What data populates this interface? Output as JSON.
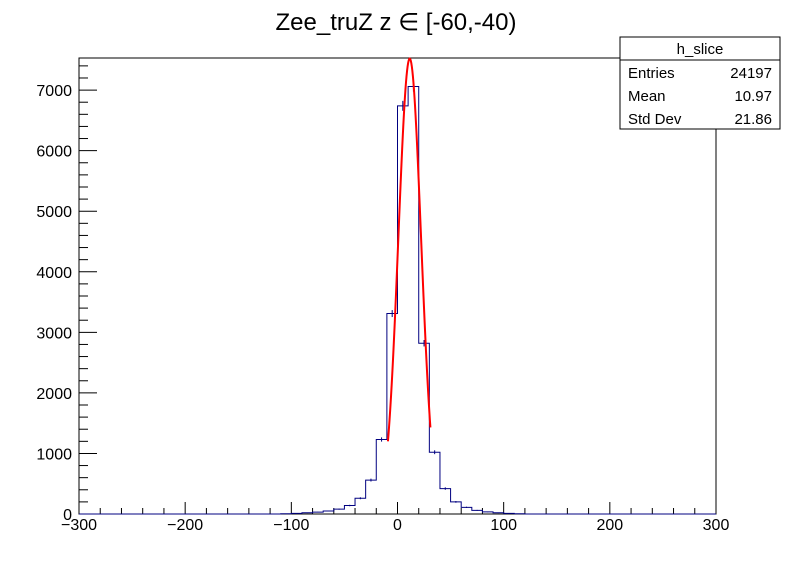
{
  "chart_data": {
    "type": "bar",
    "title": "Zee_truZ z  ∈ [-60,-40)",
    "xlabel": "",
    "ylabel": "",
    "xlim": [
      -300,
      300
    ],
    "ylim": [
      0,
      7530
    ],
    "x_ticks": [
      "−300",
      "−200",
      "−100",
      "0",
      "100",
      "200",
      "300"
    ],
    "y_ticks": [
      "0",
      "1000",
      "2000",
      "3000",
      "4000",
      "5000",
      "6000",
      "7000"
    ],
    "bin_width": 10,
    "bins": [
      {
        "x": -105,
        "y": 5
      },
      {
        "x": -95,
        "y": 10
      },
      {
        "x": -85,
        "y": 20
      },
      {
        "x": -75,
        "y": 30
      },
      {
        "x": -65,
        "y": 50
      },
      {
        "x": -55,
        "y": 80
      },
      {
        "x": -45,
        "y": 140
      },
      {
        "x": -35,
        "y": 260
      },
      {
        "x": -25,
        "y": 560
      },
      {
        "x": -15,
        "y": 1230
      },
      {
        "x": -5,
        "y": 3310
      },
      {
        "x": 5,
        "y": 6740
      },
      {
        "x": 15,
        "y": 7060
      },
      {
        "x": 25,
        "y": 2820
      },
      {
        "x": 35,
        "y": 1020
      },
      {
        "x": 45,
        "y": 420
      },
      {
        "x": 55,
        "y": 200
      },
      {
        "x": 65,
        "y": 110
      },
      {
        "x": 75,
        "y": 60
      },
      {
        "x": 85,
        "y": 35
      },
      {
        "x": 95,
        "y": 20
      },
      {
        "x": 105,
        "y": 10
      },
      {
        "x": 115,
        "y": 5
      }
    ],
    "fit": {
      "type": "gaussian",
      "constant": 7520,
      "mean": 11.5,
      "sigma": 10.7,
      "x_range": [
        -9,
        31
      ],
      "color": "#ff0000"
    },
    "histogram_color": "#000080",
    "stats": {
      "name": "h_slice",
      "rows": [
        {
          "label": "Entries",
          "value": "24197"
        },
        {
          "label": "Mean",
          "value": "10.97"
        },
        {
          "label": "Std Dev",
          "value": "21.86"
        }
      ]
    }
  }
}
